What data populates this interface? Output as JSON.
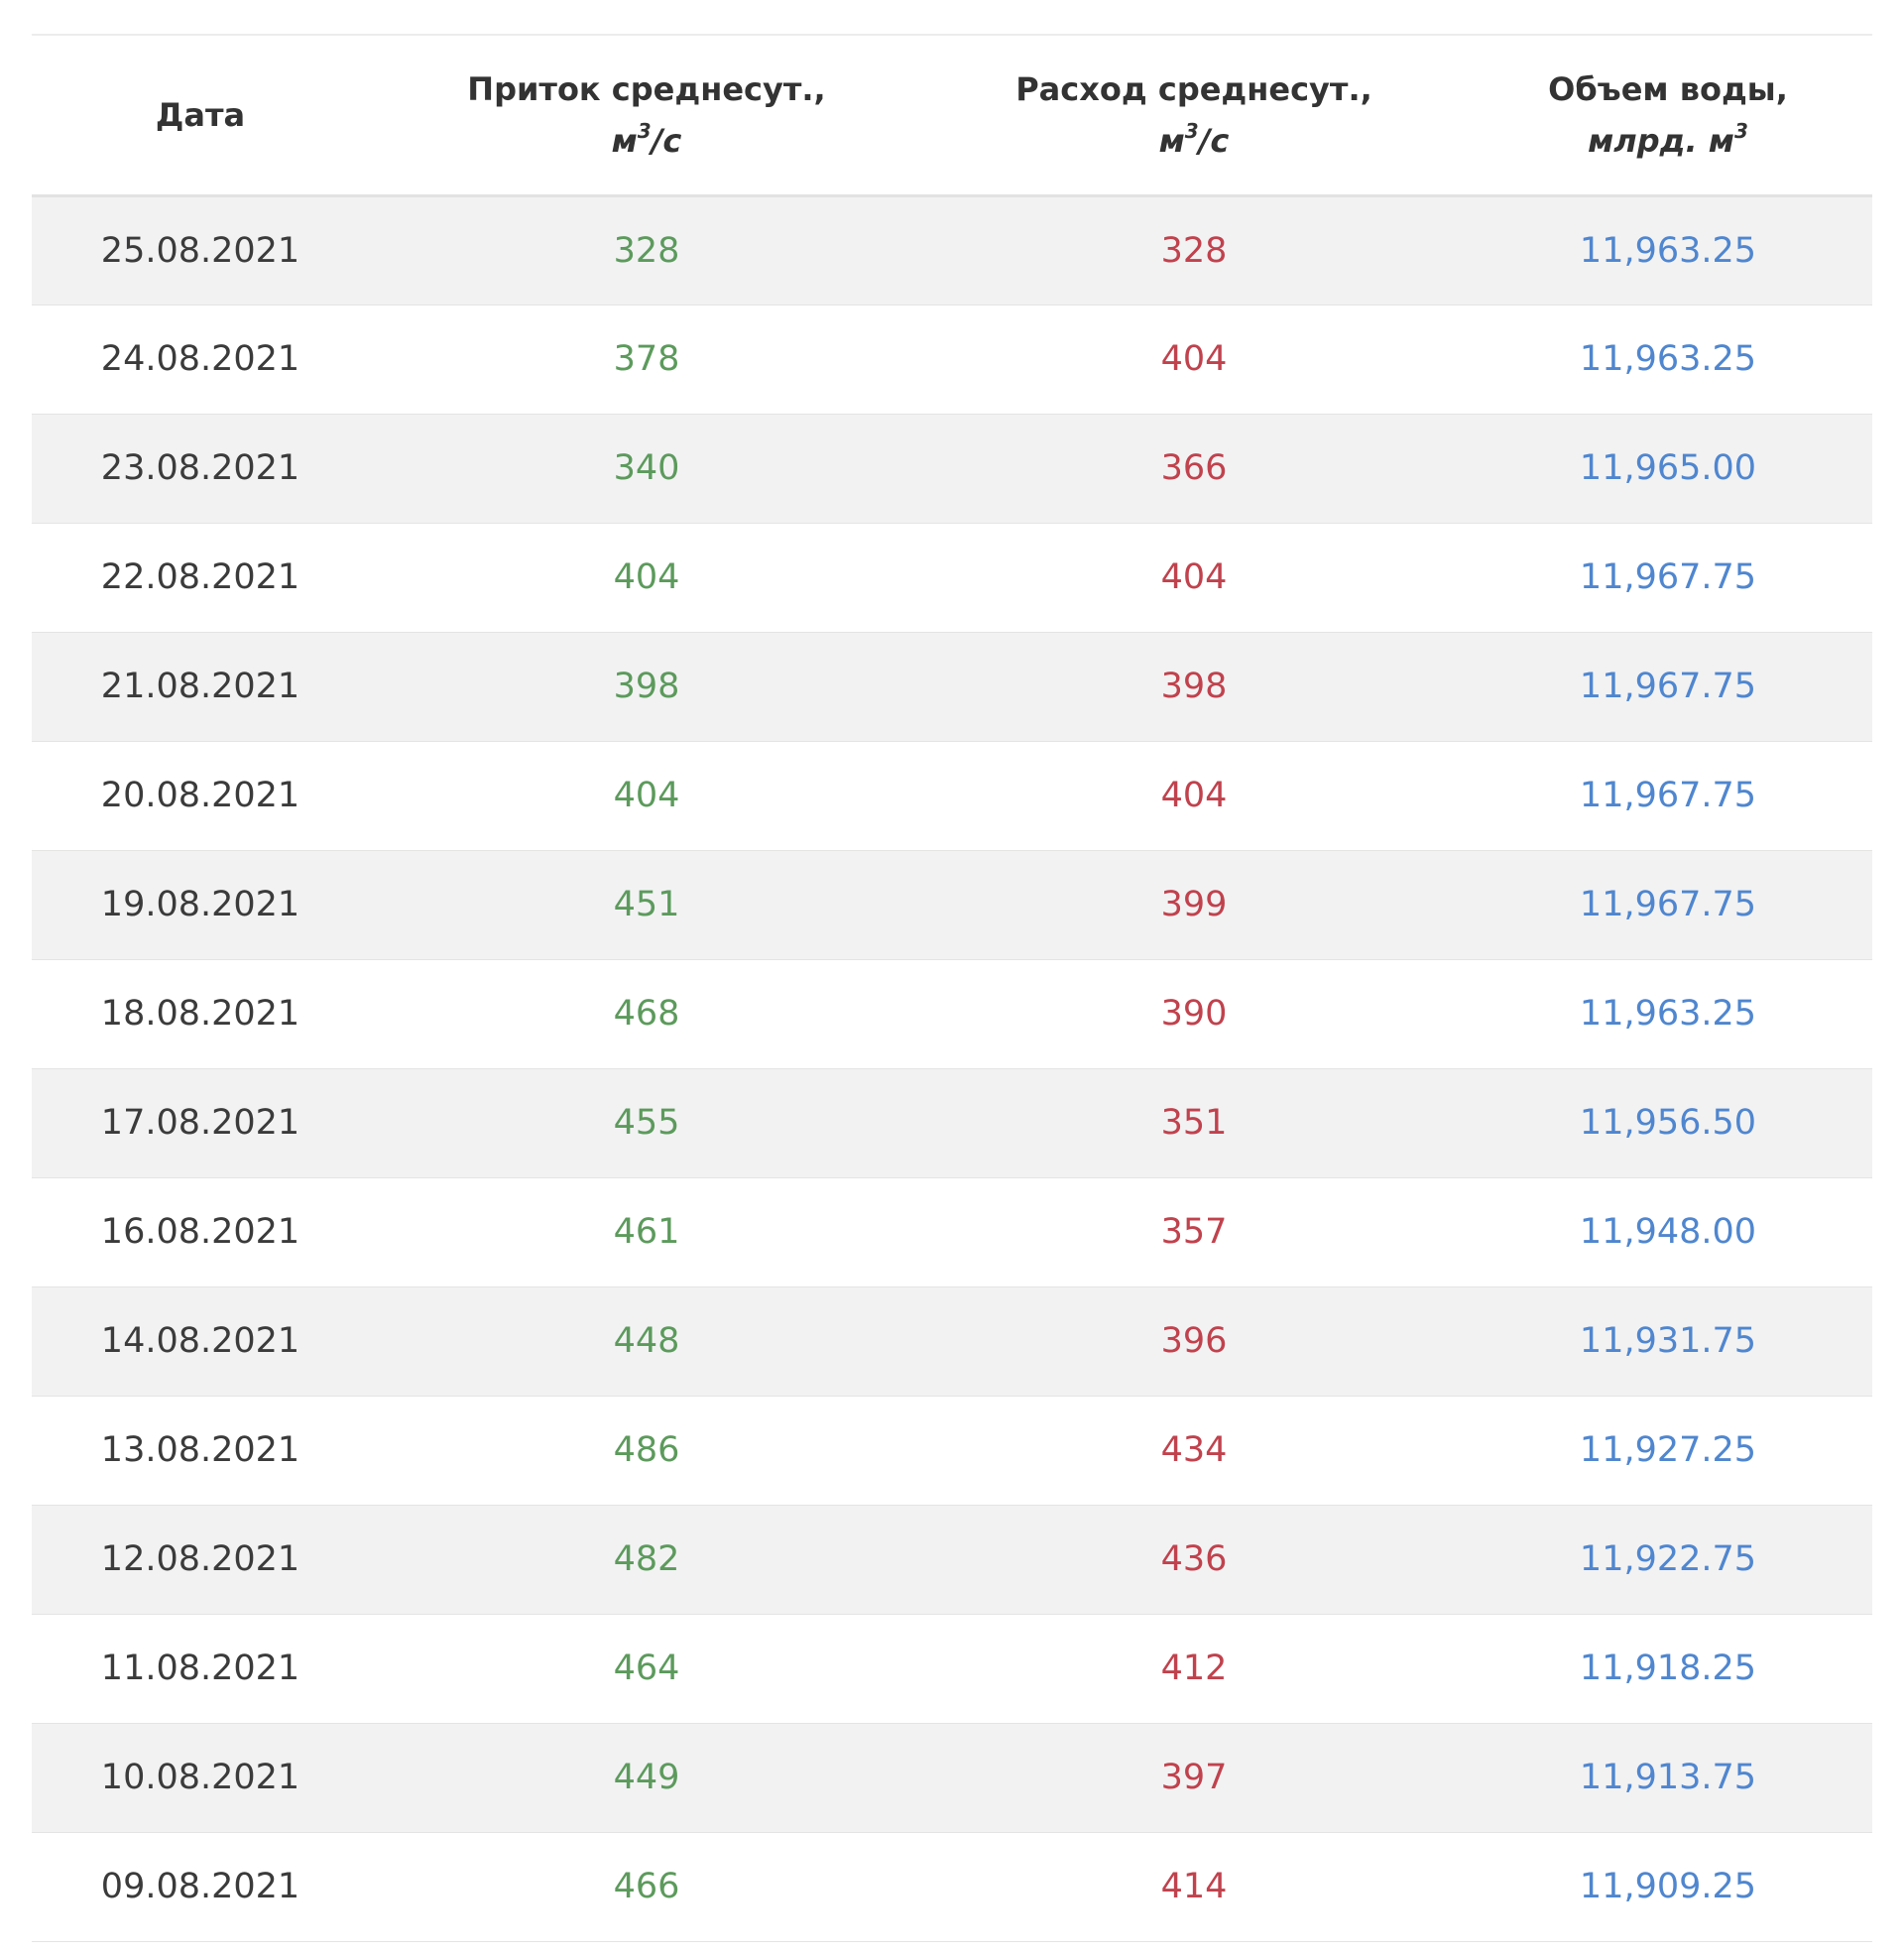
{
  "table": {
    "headers": {
      "date": "Дата",
      "inflow_title": "Приток среднесут.,",
      "inflow_unit_main": "м",
      "inflow_unit_sup": "3",
      "inflow_unit_tail": "/с",
      "outflow_title": "Расход среднесут.,",
      "outflow_unit_main": "м",
      "outflow_unit_sup": "3",
      "outflow_unit_tail": "/с",
      "volume_title": "Объем воды,",
      "volume_unit_main": "млрд. м",
      "volume_unit_sup": "3"
    },
    "rows": [
      {
        "date": "25.08.2021",
        "inflow": "328",
        "outflow": "328",
        "volume": "11,963.25"
      },
      {
        "date": "24.08.2021",
        "inflow": "378",
        "outflow": "404",
        "volume": "11,963.25"
      },
      {
        "date": "23.08.2021",
        "inflow": "340",
        "outflow": "366",
        "volume": "11,965.00"
      },
      {
        "date": "22.08.2021",
        "inflow": "404",
        "outflow": "404",
        "volume": "11,967.75"
      },
      {
        "date": "21.08.2021",
        "inflow": "398",
        "outflow": "398",
        "volume": "11,967.75"
      },
      {
        "date": "20.08.2021",
        "inflow": "404",
        "outflow": "404",
        "volume": "11,967.75"
      },
      {
        "date": "19.08.2021",
        "inflow": "451",
        "outflow": "399",
        "volume": "11,967.75"
      },
      {
        "date": "18.08.2021",
        "inflow": "468",
        "outflow": "390",
        "volume": "11,963.25"
      },
      {
        "date": "17.08.2021",
        "inflow": "455",
        "outflow": "351",
        "volume": "11,956.50"
      },
      {
        "date": "16.08.2021",
        "inflow": "461",
        "outflow": "357",
        "volume": "11,948.00"
      },
      {
        "date": "14.08.2021",
        "inflow": "448",
        "outflow": "396",
        "volume": "11,931.75"
      },
      {
        "date": "13.08.2021",
        "inflow": "486",
        "outflow": "434",
        "volume": "11,927.25"
      },
      {
        "date": "12.08.2021",
        "inflow": "482",
        "outflow": "436",
        "volume": "11,922.75"
      },
      {
        "date": "11.08.2021",
        "inflow": "464",
        "outflow": "412",
        "volume": "11,918.25"
      },
      {
        "date": "10.08.2021",
        "inflow": "449",
        "outflow": "397",
        "volume": "11,913.75"
      },
      {
        "date": "09.08.2021",
        "inflow": "466",
        "outflow": "414",
        "volume": "11,909.25"
      }
    ]
  },
  "colors": {
    "inflow": "#5c9a5c",
    "outflow": "#c0424d",
    "volume": "#4f86cf",
    "stripe": "#f2f2f3"
  }
}
